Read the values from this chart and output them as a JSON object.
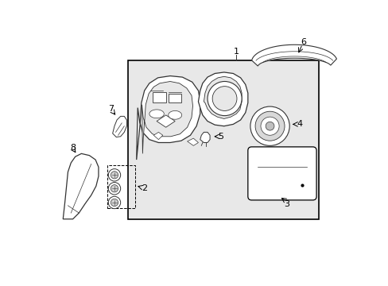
{
  "background_color": "#ffffff",
  "box_bg": "#e8e8e8",
  "line_color": "#333333",
  "lw_main": 1.0,
  "lw_thin": 0.6
}
